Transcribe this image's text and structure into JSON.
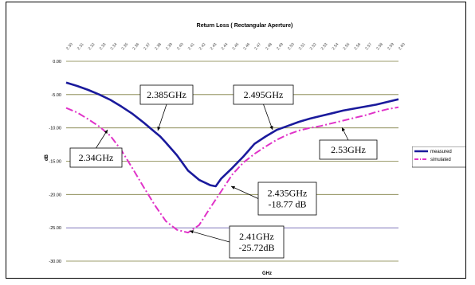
{
  "chart_data": {
    "type": "line",
    "title": "Return Loss ( Rectangular Aperture)",
    "xlabel": "GHz",
    "ylabel": "dB",
    "ylim": [
      -30,
      0
    ],
    "y_ticks": [
      "0.00",
      "-5.00",
      "-10.00",
      "-15.00",
      "-20.00",
      "-25.00",
      "-30.00"
    ],
    "y_tick_values": [
      0,
      -5,
      -10,
      -15,
      -20,
      -25,
      -30
    ],
    "x_ticks": [
      "2.30",
      "2.31",
      "2.32",
      "2.33",
      "2.34",
      "2.35",
      "2.36",
      "2.37",
      "2.38",
      "2.39",
      "2.40",
      "2.41",
      "2.42",
      "2.43",
      "2.44",
      "2.45",
      "2.46",
      "2.47",
      "2.48",
      "2.49",
      "2.50",
      "2.51",
      "2.52",
      "2.53",
      "2.54",
      "2.55",
      "2.56",
      "2.57",
      "2.58",
      "2.59",
      "2.60"
    ],
    "gridlines": "horizontal",
    "legend_position": "right",
    "series": [
      {
        "name": "measured",
        "color": "#1a1a9c",
        "style": "solid",
        "x": [
          2.3,
          2.31,
          2.32,
          2.33,
          2.34,
          2.35,
          2.36,
          2.37,
          2.38,
          2.385,
          2.39,
          2.4,
          2.41,
          2.42,
          2.43,
          2.435,
          2.44,
          2.45,
          2.46,
          2.47,
          2.48,
          2.49,
          2.495,
          2.5,
          2.51,
          2.52,
          2.53,
          2.54,
          2.55,
          2.56,
          2.57,
          2.58,
          2.59,
          2.6
        ],
        "values": [
          -3.2,
          -3.7,
          -4.3,
          -5.0,
          -5.8,
          -6.8,
          -7.9,
          -9.2,
          -10.6,
          -11.3,
          -12.2,
          -14.1,
          -16.4,
          -17.8,
          -18.6,
          -18.77,
          -17.6,
          -16.0,
          -14.3,
          -12.4,
          -11.3,
          -10.3,
          -10.0,
          -9.7,
          -9.1,
          -8.6,
          -8.2,
          -7.8,
          -7.4,
          -7.1,
          -6.8,
          -6.5,
          -6.1,
          -5.7
        ]
      },
      {
        "name": "simulated",
        "color": "#e033c8",
        "style": "dashdot",
        "x": [
          2.3,
          2.31,
          2.32,
          2.33,
          2.34,
          2.35,
          2.36,
          2.37,
          2.38,
          2.39,
          2.4,
          2.41,
          2.42,
          2.43,
          2.44,
          2.45,
          2.46,
          2.47,
          2.48,
          2.49,
          2.5,
          2.51,
          2.52,
          2.53,
          2.54,
          2.55,
          2.56,
          2.57,
          2.58,
          2.59,
          2.6
        ],
        "values": [
          -7.0,
          -7.7,
          -8.7,
          -9.8,
          -11.2,
          -13.4,
          -16.1,
          -18.9,
          -21.6,
          -24.0,
          -25.3,
          -25.72,
          -24.6,
          -22.0,
          -19.5,
          -17.0,
          -15.2,
          -13.9,
          -12.8,
          -11.8,
          -11.0,
          -10.4,
          -10.0,
          -9.7,
          -9.3,
          -8.9,
          -8.5,
          -8.1,
          -7.6,
          -7.2,
          -6.9
        ]
      }
    ],
    "annotations": [
      {
        "id": "a2385",
        "lines": [
          "2.385GHz"
        ]
      },
      {
        "id": "a2495",
        "lines": [
          "2.495GHz"
        ]
      },
      {
        "id": "a234",
        "lines": [
          "2.34GHz"
        ]
      },
      {
        "id": "a253",
        "lines": [
          "2.53GHz"
        ]
      },
      {
        "id": "a2435",
        "lines": [
          "2.435GHz",
          "-18.77 dB"
        ]
      },
      {
        "id": "a241",
        "lines": [
          "2.41GHz",
          "-25.72dB"
        ]
      }
    ],
    "legend": [
      "measured",
      "simulated"
    ]
  }
}
